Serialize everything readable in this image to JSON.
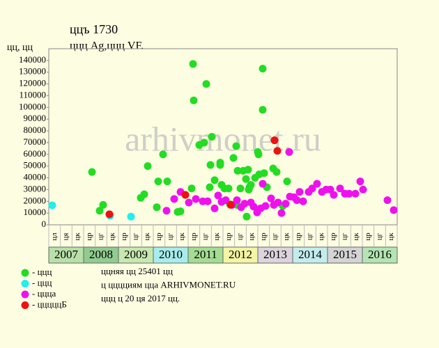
{
  "chart_data": {
    "type": "scatter",
    "title": "ццъ 1730",
    "subtitle": "ццц Ag,ццц VF.",
    "y_label": "цц, цц",
    "watermark": "arhivmonet.ru",
    "xlim": [
      2007,
      2017
    ],
    "ylim": [
      0,
      150000
    ],
    "yticks": [
      0,
      10000,
      20000,
      30000,
      40000,
      50000,
      60000,
      70000,
      80000,
      90000,
      100000,
      110000,
      120000,
      130000,
      140000
    ],
    "grid": false,
    "x_bands": [
      "2007",
      "2008",
      "2009",
      "2010",
      "2011",
      "2012",
      "2013",
      "2014",
      "2015",
      "2016"
    ],
    "band_colors": [
      "#b8e0a8",
      "#90cc90",
      "#c8e8b0",
      "#a8ecec",
      "#a4dc94",
      "#f4f4a4",
      "#dcd4dc",
      "#c4ecec",
      "#d4d4d4",
      "#b4e4b4"
    ],
    "x_sublabels": [
      "цл",
      "ця",
      "цк",
      "цр",
      "цг",
      "цк",
      "цр",
      "цг",
      "цк",
      "цр",
      "цг",
      "цк",
      "цр",
      "цг",
      "цк",
      "цр",
      "цг",
      "цк",
      "цр",
      "цг",
      "цк",
      "цр",
      "цг",
      "цк",
      "цр",
      "цг",
      "цк",
      "цр",
      "цг",
      "цк"
    ],
    "series": [
      {
        "name": "- ццц",
        "color": "#22dd22",
        "x": [
          2008.24,
          2008.46,
          2008.56,
          2009.64,
          2009.74,
          2009.84,
          2010.1,
          2010.14,
          2010.28,
          2010.4,
          2010.7,
          2010.78,
          2011.1,
          2011.14,
          2011.16,
          2011.32,
          2011.46,
          2011.52,
          2011.62,
          2011.64,
          2011.68,
          2011.76,
          2011.92,
          2011.92,
          2011.96,
          2012.04,
          2012.16,
          2012.2,
          2012.3,
          2012.38,
          2012.4,
          2012.42,
          2012.5,
          2012.58,
          2012.66,
          2012.68,
          2012.72,
          2012.74,
          2012.76,
          2012.8,
          2012.92,
          2013.0,
          2013.02,
          2013.04,
          2013.14,
          2013.14,
          2013.18,
          2013.26,
          2013.44,
          2013.54,
          2013.72,
          2013.84
        ],
        "values": [
          45000,
          12000,
          17000,
          23000,
          26000,
          50000,
          15000,
          37000,
          60000,
          37000,
          11000,
          11500,
          31000,
          137000,
          106000,
          68000,
          70000,
          120000,
          32000,
          51000,
          75000,
          38000,
          53000,
          51000,
          34000,
          31000,
          31000,
          17500,
          57000,
          67000,
          17000,
          46000,
          31000,
          46000,
          39000,
          7000,
          47000,
          30000,
          32000,
          34000,
          40000,
          62000,
          60000,
          43000,
          133000,
          98000,
          44000,
          32000,
          48000,
          45000,
          16000,
          37000
        ]
      },
      {
        "name": "- ццц",
        "color": "#22eeee",
        "x": [
          2007.1,
          2008.76,
          2009.36,
          2012.0
        ],
        "values": [
          16600,
          7700,
          7000,
          20000
        ]
      },
      {
        "name": "- ццца",
        "color": "#ee11ee",
        "x": [
          2010.38,
          2010.6,
          2010.78,
          2011.02,
          2011.22,
          2011.42,
          2011.56,
          2011.76,
          2011.86,
          2011.96,
          2012.08,
          2012.26,
          2012.4,
          2012.52,
          2012.62,
          2012.8,
          2012.88,
          2012.98,
          2013.08,
          2013.14,
          2013.22,
          2013.38,
          2013.46,
          2013.58,
          2013.68,
          2013.8,
          2013.9,
          2013.92,
          2014.04,
          2014.12,
          2014.2,
          2014.3,
          2014.46,
          2014.56,
          2014.7,
          2014.84,
          2014.96,
          2015.08,
          2015.18,
          2015.36,
          2015.5,
          2015.62,
          2015.8,
          2015.94,
          2016.02,
          2016.72,
          2016.9
        ],
        "values": [
          12000,
          22000,
          28000,
          19000,
          22000,
          20000,
          20000,
          14000,
          25000,
          19500,
          21000,
          17000,
          21000,
          15000,
          18000,
          19000,
          15500,
          10500,
          14000,
          35000,
          16000,
          22500,
          17000,
          19000,
          10000,
          18000,
          62000,
          24000,
          23500,
          21000,
          28000,
          20000,
          28000,
          31000,
          35000,
          28000,
          30000,
          30000,
          25500,
          31000,
          26500,
          26500,
          26500,
          37000,
          30000,
          21000,
          12500
        ]
      },
      {
        "name": "- цццццБ",
        "color": "#ee1111",
        "x": [
          2008.74,
          2010.92,
          2012.22,
          2013.48,
          2013.56
        ],
        "values": [
          9000,
          25500,
          17000,
          72000,
          63000
        ]
      }
    ],
    "notes": [
      "ццняя цц 25401 цц",
      "ц цццциям цца ARHIVMONET.RU",
      "ццц ц 20 ця 2017 цц."
    ]
  }
}
